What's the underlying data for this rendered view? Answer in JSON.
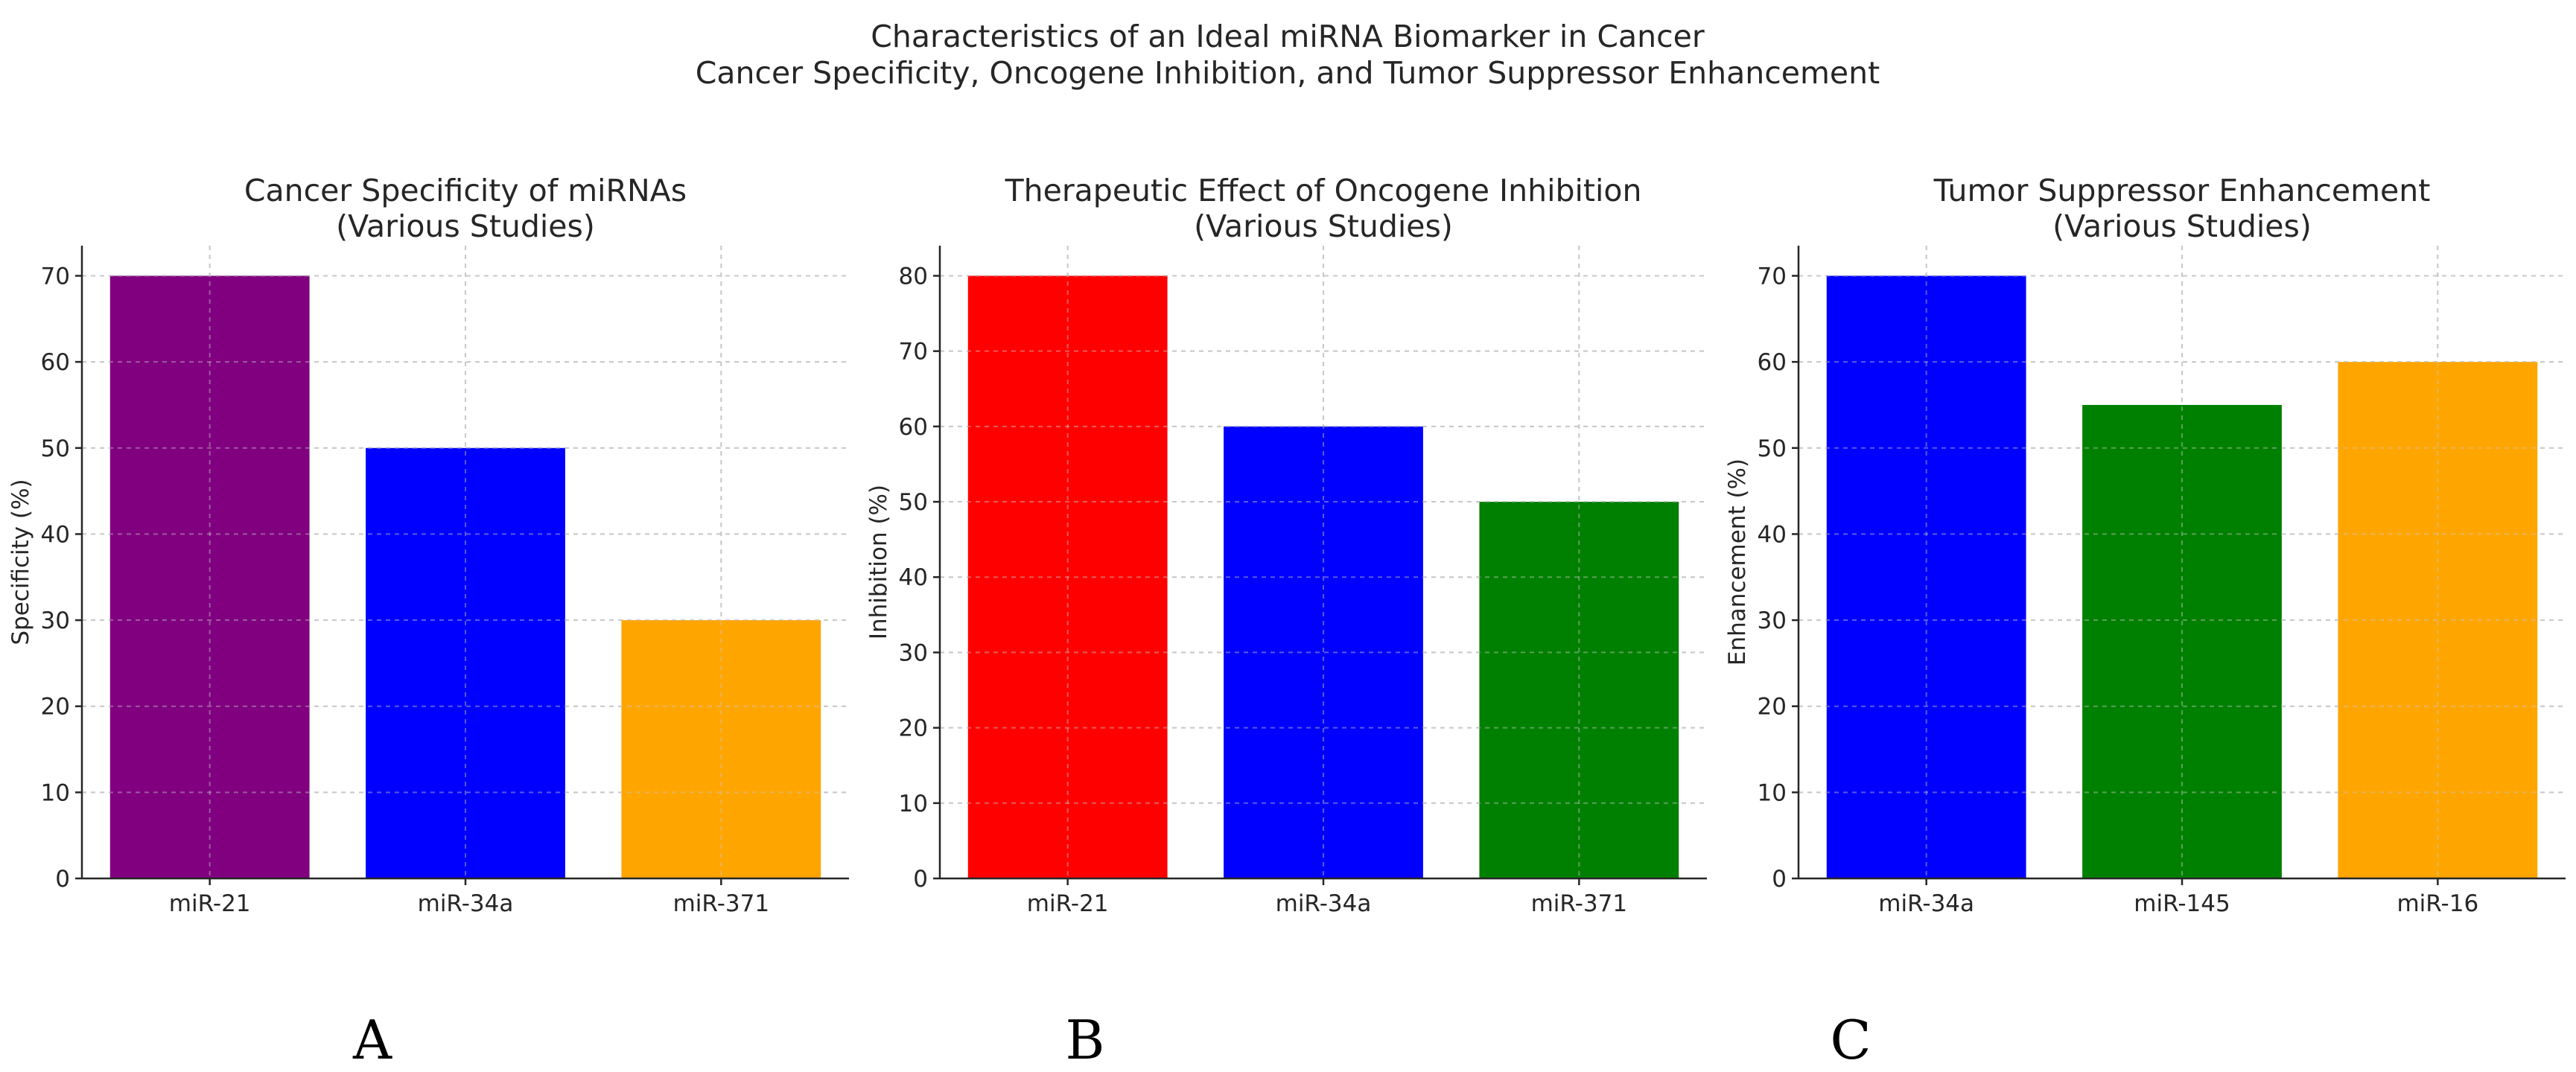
{
  "figure": {
    "suptitle": [
      "Characteristics of an Ideal miRNA Biomarker in Cancer",
      "Cancer Specificity, Oncogene Inhibition, and Tumor Suppressor Enhancement"
    ]
  },
  "chart_data": [
    {
      "type": "bar",
      "title": [
        "Cancer Specificity of miRNAs",
        "(Various Studies)"
      ],
      "xlabel": "",
      "ylabel": "Specificity (%)",
      "categories": [
        "miR-21",
        "miR-34a",
        "miR-371"
      ],
      "values": [
        70,
        50,
        30
      ],
      "colors": [
        "#800080",
        "#0000ff",
        "#ffa500"
      ],
      "ylim": [
        0,
        73.5
      ],
      "yticks": [
        0,
        10,
        20,
        30,
        40,
        50,
        60,
        70
      ],
      "grid": true,
      "panel_letter": "A"
    },
    {
      "type": "bar",
      "title": [
        "Therapeutic Effect of Oncogene Inhibition",
        "(Various Studies)"
      ],
      "xlabel": "",
      "ylabel": "Inhibition (%)",
      "categories": [
        "miR-21",
        "miR-34a",
        "miR-371"
      ],
      "values": [
        80,
        60,
        50
      ],
      "colors": [
        "#ff0000",
        "#0000ff",
        "#008000"
      ],
      "ylim": [
        0,
        84
      ],
      "yticks": [
        0,
        10,
        20,
        30,
        40,
        50,
        60,
        70,
        80
      ],
      "grid": true,
      "panel_letter": "B"
    },
    {
      "type": "bar",
      "title": [
        "Tumor Suppressor Enhancement",
        "(Various Studies)"
      ],
      "xlabel": "",
      "ylabel": "Enhancement (%)",
      "categories": [
        "miR-34a",
        "miR-145",
        "miR-16"
      ],
      "values": [
        70,
        55,
        60
      ],
      "colors": [
        "#0000ff",
        "#008000",
        "#ffa500"
      ],
      "ylim": [
        0,
        73.5
      ],
      "yticks": [
        0,
        10,
        20,
        30,
        40,
        50,
        60,
        70
      ],
      "grid": true,
      "panel_letter": "C"
    }
  ]
}
